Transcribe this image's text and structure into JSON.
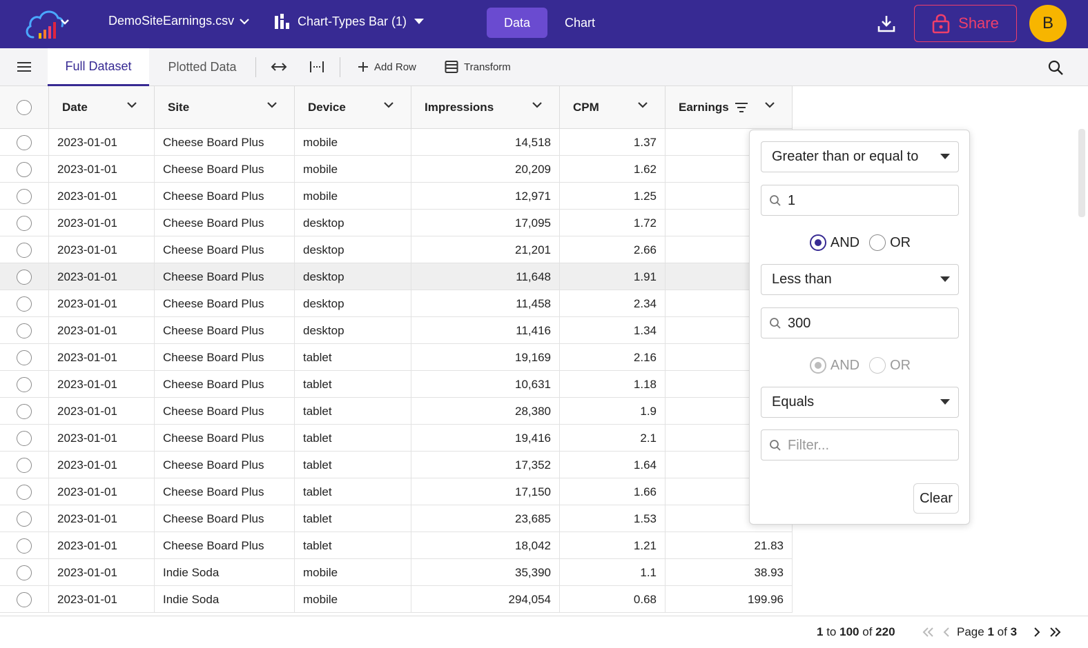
{
  "header": {
    "file_name": "DemoSiteEarnings.csv",
    "chart_name": "Chart-Types Bar (1)",
    "tabs": [
      {
        "label": "Data",
        "active": true
      },
      {
        "label": "Chart",
        "active": false
      }
    ],
    "share_label": "Share",
    "avatar_initial": "B",
    "colors": {
      "bar": "#372a93",
      "active_tab": "#6a4bd0",
      "share": "#ef3f6a",
      "avatar": "#f7b500"
    }
  },
  "toolbar": {
    "tabs": [
      "Full Dataset",
      "Plotted Data"
    ],
    "active_tab": "Full Dataset",
    "add_row_label": "Add Row",
    "transform_label": "Transform",
    "icons": [
      "menu-icon",
      "expand-horizontal-icon",
      "fit-columns-icon",
      "plus-icon",
      "transform-icon",
      "search-icon"
    ]
  },
  "table": {
    "columns": [
      "Date",
      "Site",
      "Device",
      "Impressions",
      "CPM",
      "Earnings"
    ],
    "filtered_column": "Earnings",
    "rows": [
      [
        "2023-01-01",
        "Cheese Board Plus",
        "mobile",
        "14,518",
        "1.37",
        ""
      ],
      [
        "2023-01-01",
        "Cheese Board Plus",
        "mobile",
        "20,209",
        "1.62",
        ""
      ],
      [
        "2023-01-01",
        "Cheese Board Plus",
        "mobile",
        "12,971",
        "1.25",
        ""
      ],
      [
        "2023-01-01",
        "Cheese Board Plus",
        "desktop",
        "17,095",
        "1.72",
        ""
      ],
      [
        "2023-01-01",
        "Cheese Board Plus",
        "desktop",
        "21,201",
        "2.66",
        ""
      ],
      [
        "2023-01-01",
        "Cheese Board Plus",
        "desktop",
        "11,648",
        "1.91",
        ""
      ],
      [
        "2023-01-01",
        "Cheese Board Plus",
        "desktop",
        "11,458",
        "2.34",
        ""
      ],
      [
        "2023-01-01",
        "Cheese Board Plus",
        "desktop",
        "11,416",
        "1.34",
        ""
      ],
      [
        "2023-01-01",
        "Cheese Board Plus",
        "tablet",
        "19,169",
        "2.16",
        ""
      ],
      [
        "2023-01-01",
        "Cheese Board Plus",
        "tablet",
        "10,631",
        "1.18",
        ""
      ],
      [
        "2023-01-01",
        "Cheese Board Plus",
        "tablet",
        "28,380",
        "1.9",
        ""
      ],
      [
        "2023-01-01",
        "Cheese Board Plus",
        "tablet",
        "19,416",
        "2.1",
        ""
      ],
      [
        "2023-01-01",
        "Cheese Board Plus",
        "tablet",
        "17,352",
        "1.64",
        ""
      ],
      [
        "2023-01-01",
        "Cheese Board Plus",
        "tablet",
        "17,150",
        "1.66",
        ""
      ],
      [
        "2023-01-01",
        "Cheese Board Plus",
        "tablet",
        "23,685",
        "1.53",
        ""
      ],
      [
        "2023-01-01",
        "Cheese Board Plus",
        "tablet",
        "18,042",
        "1.21",
        "21.83"
      ],
      [
        "2023-01-01",
        "Indie Soda",
        "mobile",
        "35,390",
        "1.1",
        "38.93"
      ],
      [
        "2023-01-01",
        "Indie Soda",
        "mobile",
        "294,054",
        "0.68",
        "199.96"
      ]
    ],
    "highlighted_row": 5
  },
  "filter": {
    "condition1": {
      "operator": "Greater than or equal to",
      "value": "1"
    },
    "join1": {
      "options": [
        "AND",
        "OR"
      ],
      "selected": "AND"
    },
    "condition2": {
      "operator": "Less than",
      "value": "300"
    },
    "join2": {
      "options": [
        "AND",
        "OR"
      ],
      "selected": "AND",
      "disabled": true
    },
    "condition3": {
      "operator": "Equals",
      "value": "",
      "placeholder": "Filter..."
    },
    "clear_label": "Clear"
  },
  "pagination": {
    "from": "1",
    "to_label": "to",
    "to": "100",
    "of_label": "of",
    "total": "220",
    "page_label": "Page",
    "current_page": "1",
    "of_pages_label": "of",
    "total_pages": "3"
  }
}
